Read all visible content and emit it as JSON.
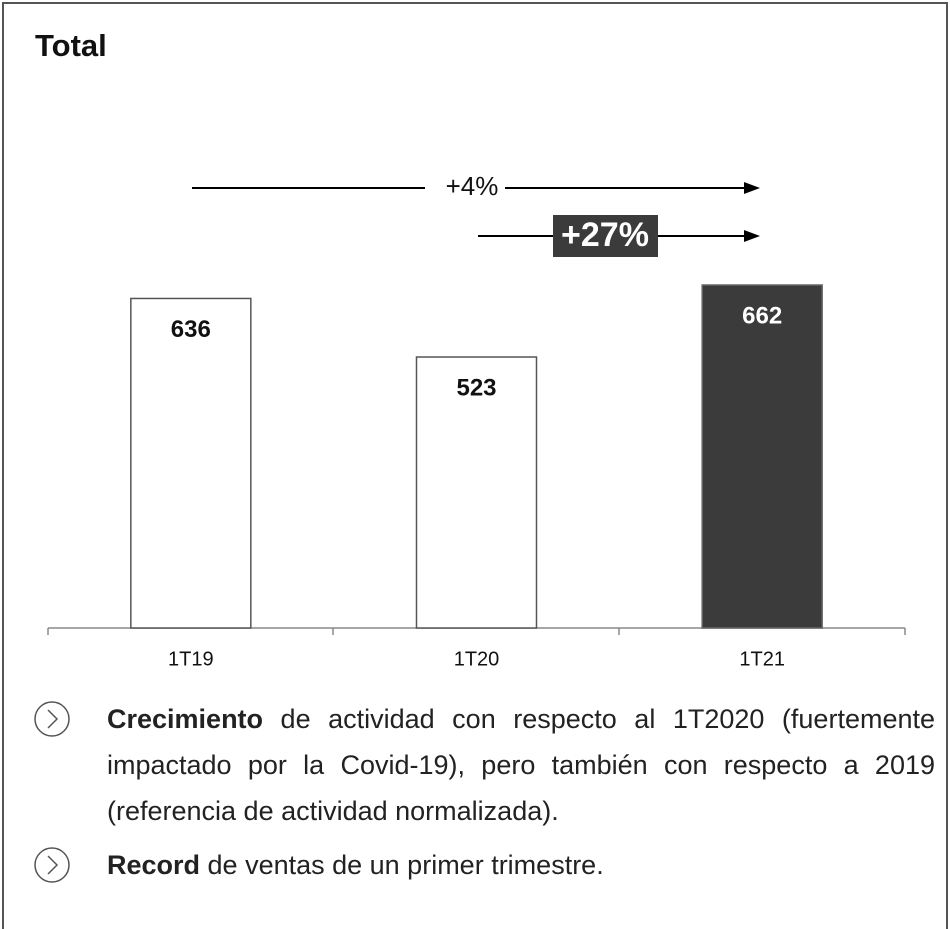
{
  "chart_data": {
    "type": "bar",
    "title": "Total",
    "categories": [
      "1T19",
      "1T20",
      "1T21"
    ],
    "values": [
      636,
      523,
      662
    ],
    "colors": [
      "#ffffff",
      "#ffffff",
      "#3b3b3b"
    ],
    "annotations": [
      "+4%",
      "+27%"
    ]
  },
  "bullets": [
    {
      "bold": "Crecimiento",
      "text": " de actividad con respecto al 1T2020 (fuertemente impactado por la Covid-19), pero también con respecto a 2019 (referencia de actividad normalizada)."
    },
    {
      "bold": "Record",
      "text": " de ventas de un primer trimestre."
    }
  ]
}
